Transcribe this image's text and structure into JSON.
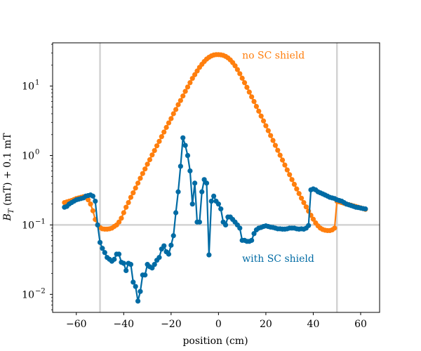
{
  "chart_data": {
    "type": "line",
    "title": "",
    "xlabel": "position (cm)",
    "ylabel": "B_T (mT) + 0.1 mT",
    "yscale": "log",
    "xlim": [
      -70,
      68
    ],
    "ylim": [
      0.0055,
      42
    ],
    "xticks": [
      -60,
      -40,
      -20,
      0,
      20,
      40,
      60
    ],
    "xtick_labels": [
      "−60",
      "−40",
      "−20",
      "0",
      "20",
      "40",
      "60"
    ],
    "yticks": [
      0.01,
      0.1,
      1,
      10
    ],
    "ytick_labels": [
      "10",
      "10",
      "10",
      "10"
    ],
    "ytick_exponents": [
      "−2",
      "−1",
      "0",
      "1"
    ],
    "grid": false,
    "reference_lines": {
      "vertical_x": [
        -50,
        50
      ],
      "horizontal_y": [
        0.1
      ],
      "color": "#d3d3d3"
    },
    "annotations": [
      {
        "text": "no SC shield",
        "x": 10,
        "y": 28,
        "color": "#ff7f0e"
      },
      {
        "text": "with SC shield",
        "x": 10,
        "y": 0.033,
        "color": "#006ba4"
      }
    ],
    "series": [
      {
        "color": "#ff7f0e",
        "x": [
          -65,
          -64,
          -63,
          -62,
          -61,
          -60,
          -59,
          -58,
          -57,
          -56,
          -55,
          -54,
          -53,
          -52,
          -51,
          -50,
          -49,
          -48,
          -47,
          -46,
          -45,
          -44,
          -43,
          -42,
          -41,
          -40,
          -39,
          -38,
          -37,
          -36,
          -35,
          -34,
          -33,
          -32,
          -31,
          -30,
          -29,
          -28,
          -27,
          -26,
          -25,
          -24,
          -23,
          -22,
          -21,
          -20,
          -19,
          -18,
          -17,
          -16,
          -15,
          -14,
          -13,
          -12,
          -11,
          -10,
          -9,
          -8,
          -7,
          -6,
          -5,
          -4,
          -3,
          -2,
          -1,
          0,
          1,
          2,
          3,
          4,
          5,
          6,
          7,
          8,
          9,
          10,
          11,
          12,
          13,
          14,
          15,
          16,
          17,
          18,
          19,
          20,
          21,
          22,
          23,
          24,
          25,
          26,
          27,
          28,
          29,
          30,
          31,
          32,
          33,
          34,
          35,
          36,
          37,
          38,
          39,
          40,
          41,
          42,
          43,
          44,
          45,
          46,
          47,
          48,
          49,
          50,
          51,
          52,
          53,
          54,
          55,
          56,
          57,
          58,
          59,
          60,
          61,
          62
        ],
        "y": [
          0.21,
          0.215,
          0.22,
          0.225,
          0.232,
          0.24,
          0.245,
          0.25,
          0.255,
          0.25,
          0.23,
          0.2,
          0.16,
          0.12,
          0.1,
          0.092,
          0.088,
          0.087,
          0.087,
          0.088,
          0.09,
          0.095,
          0.1,
          0.11,
          0.125,
          0.15,
          0.18,
          0.21,
          0.25,
          0.29,
          0.34,
          0.4,
          0.47,
          0.55,
          0.64,
          0.75,
          0.87,
          1.02,
          1.18,
          1.38,
          1.6,
          1.87,
          2.18,
          2.54,
          2.95,
          3.4,
          4.0,
          4.6,
          5.4,
          6.2,
          7.2,
          8.4,
          9.7,
          11.2,
          12.9,
          14.6,
          16.5,
          18.6,
          20.6,
          22.6,
          24.5,
          26.0,
          27.2,
          28.0,
          28.4,
          28.4,
          28.2,
          27.7,
          26.8,
          25.5,
          23.8,
          21.8,
          19.6,
          17.3,
          15.1,
          13.0,
          11.2,
          9.6,
          8.2,
          7.0,
          6.0,
          5.1,
          4.35,
          3.7,
          3.15,
          2.68,
          2.28,
          1.94,
          1.65,
          1.4,
          1.19,
          1.01,
          0.86,
          0.73,
          0.62,
          0.53,
          0.45,
          0.385,
          0.33,
          0.283,
          0.243,
          0.21,
          0.182,
          0.158,
          0.138,
          0.121,
          0.107,
          0.097,
          0.09,
          0.086,
          0.084,
          0.083,
          0.083,
          0.085,
          0.09,
          0.22,
          0.215,
          0.21,
          0.205,
          0.2,
          0.196,
          0.192,
          0.188,
          0.184,
          0.18,
          0.176,
          0.172,
          0.168
        ]
      },
      {
        "color": "#006ba4",
        "x": [
          -65,
          -64,
          -63,
          -62,
          -61,
          -60,
          -59,
          -58,
          -57,
          -56,
          -55,
          -54,
          -53,
          -52,
          -51,
          -50,
          -49,
          -48,
          -47,
          -46,
          -45,
          -44,
          -43,
          -42,
          -41,
          -40,
          -39,
          -38,
          -37,
          -36,
          -35,
          -34,
          -33,
          -32,
          -31,
          -30,
          -29,
          -28,
          -27,
          -26,
          -25,
          -24,
          -23,
          -22,
          -21,
          -20,
          -19,
          -18,
          -17,
          -16,
          -15,
          -14,
          -13,
          -12,
          -11,
          -10,
          -9,
          -8,
          -7,
          -6,
          -5,
          -4,
          -3,
          -2,
          -1,
          0,
          1,
          2,
          3,
          4,
          5,
          6,
          7,
          8,
          9,
          10,
          11,
          12,
          13,
          14,
          15,
          16,
          17,
          18,
          19,
          20,
          21,
          22,
          23,
          24,
          25,
          26,
          27,
          28,
          29,
          30,
          31,
          32,
          33,
          34,
          35,
          36,
          37,
          38,
          39,
          40,
          41,
          42,
          43,
          44,
          45,
          46,
          47,
          48,
          49,
          50,
          51,
          52,
          53,
          54,
          55,
          56,
          57,
          58,
          59,
          60,
          61,
          62
        ],
        "y": [
          0.18,
          0.185,
          0.2,
          0.21,
          0.22,
          0.23,
          0.235,
          0.24,
          0.245,
          0.26,
          0.265,
          0.27,
          0.26,
          0.22,
          0.1,
          0.056,
          0.046,
          0.04,
          0.034,
          0.032,
          0.03,
          0.032,
          0.038,
          0.038,
          0.029,
          0.028,
          0.022,
          0.028,
          0.027,
          0.015,
          0.013,
          0.008,
          0.011,
          0.019,
          0.019,
          0.027,
          0.025,
          0.024,
          0.027,
          0.031,
          0.034,
          0.045,
          0.05,
          0.041,
          0.038,
          0.051,
          0.07,
          0.15,
          0.3,
          0.7,
          1.8,
          1.4,
          1.0,
          0.6,
          0.2,
          0.4,
          0.11,
          0.11,
          0.3,
          0.45,
          0.4,
          0.037,
          0.22,
          0.26,
          0.22,
          0.2,
          0.17,
          0.11,
          0.1,
          0.13,
          0.13,
          0.12,
          0.11,
          0.1,
          0.09,
          0.06,
          0.06,
          0.058,
          0.058,
          0.06,
          0.075,
          0.085,
          0.09,
          0.092,
          0.095,
          0.097,
          0.095,
          0.093,
          0.092,
          0.09,
          0.088,
          0.088,
          0.087,
          0.087,
          0.088,
          0.09,
          0.09,
          0.09,
          0.088,
          0.087,
          0.088,
          0.087,
          0.09,
          0.098,
          0.32,
          0.33,
          0.32,
          0.3,
          0.29,
          0.28,
          0.27,
          0.26,
          0.25,
          0.245,
          0.24,
          0.23,
          0.225,
          0.22,
          0.21,
          0.2,
          0.195,
          0.19,
          0.185,
          0.18,
          0.178,
          0.175,
          0.172,
          0.17
        ]
      }
    ]
  }
}
